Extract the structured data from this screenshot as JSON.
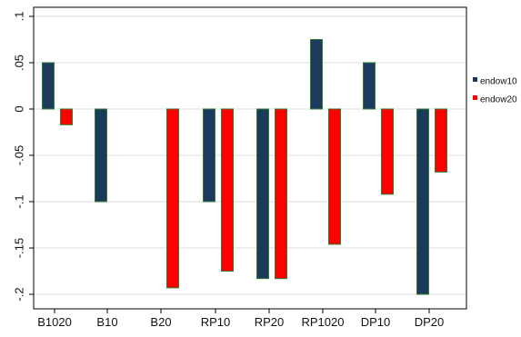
{
  "chart_data": {
    "type": "bar",
    "title": "",
    "xlabel": "",
    "ylabel": "",
    "categories": [
      "B1020",
      "B10",
      "B20",
      "RP10",
      "RP20",
      "RP1020",
      "DP10",
      "DP20"
    ],
    "series": [
      {
        "name": "endow10",
        "color": "#1b3a5c",
        "values": [
          0.05,
          -0.1,
          null,
          -0.1,
          -0.183,
          0.075,
          0.05,
          -0.2
        ]
      },
      {
        "name": "endow20",
        "color": "#ff0000",
        "values": [
          -0.017,
          null,
          -0.193,
          -0.175,
          -0.183,
          -0.146,
          -0.092,
          -0.068
        ]
      }
    ],
    "ylim": [
      -0.21,
      0.105
    ],
    "yticks": [
      0.1,
      0.05,
      0,
      -0.05,
      -0.1,
      -0.15,
      -0.2
    ],
    "ytick_labels": [
      ".1",
      ".05",
      "0",
      "-.05",
      "-.1",
      "-.15",
      "-.2"
    ],
    "grid": true,
    "legend_position": "right",
    "colors": {
      "bar_edge": "#2e7d32",
      "grid": "#dcdcdc",
      "axis": "#000000"
    }
  }
}
